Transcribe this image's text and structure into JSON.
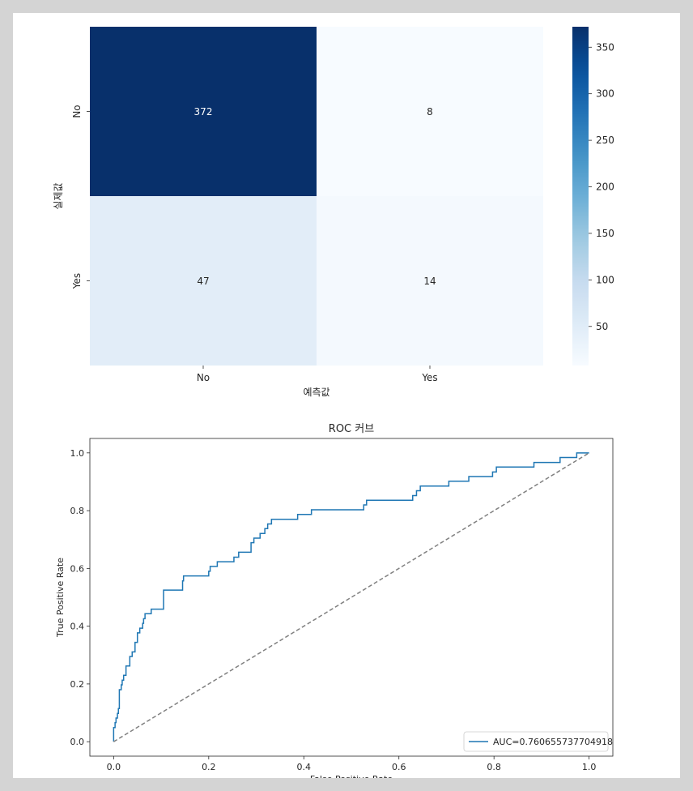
{
  "chart_data": [
    {
      "type": "heatmap",
      "title": "",
      "xlabel": "예측값",
      "ylabel": "실제값",
      "x_categories": [
        "No",
        "Yes"
      ],
      "y_categories": [
        "No",
        "Yes"
      ],
      "values": [
        [
          372,
          8
        ],
        [
          47,
          14
        ]
      ],
      "annotations": [
        [
          "372",
          "8"
        ],
        [
          "47",
          "14"
        ]
      ],
      "colormap": "Blues",
      "colorbar": {
        "range": [
          8,
          372
        ],
        "ticks": [
          50,
          100,
          150,
          200,
          250,
          300,
          350
        ],
        "tick_labels": [
          "50",
          "100",
          "150",
          "200",
          "250",
          "300",
          "350"
        ]
      }
    },
    {
      "type": "line",
      "title": "ROC 커브",
      "xlabel": "False Positive Rate",
      "ylabel": "True Positive Rate",
      "xlim": [
        -0.05,
        1.05
      ],
      "ylim": [
        -0.05,
        1.05
      ],
      "xticks": [
        0.0,
        0.2,
        0.4,
        0.6,
        0.8,
        1.0
      ],
      "xtick_labels": [
        "0.0",
        "0.2",
        "0.4",
        "0.6",
        "0.8",
        "1.0"
      ],
      "yticks": [
        0.0,
        0.2,
        0.4,
        0.6,
        0.8,
        1.0
      ],
      "ytick_labels": [
        "0.0",
        "0.2",
        "0.4",
        "0.6",
        "0.8",
        "1.0"
      ],
      "grid": false,
      "legend_position": "lower-right",
      "series": [
        {
          "name": "AUC=0.760655737704918",
          "color": "#1f77b4",
          "style": "solid",
          "step": true,
          "x": [
            0.0,
            0.0,
            0.003,
            0.005,
            0.008,
            0.01,
            0.012,
            0.016,
            0.018,
            0.021,
            0.026,
            0.034,
            0.039,
            0.045,
            0.05,
            0.055,
            0.061,
            0.063,
            0.066,
            0.079,
            0.084,
            0.105,
            0.108,
            0.145,
            0.147,
            0.153,
            0.2,
            0.203,
            0.213,
            0.218,
            0.232,
            0.234,
            0.253,
            0.263,
            0.289,
            0.295,
            0.308,
            0.313,
            0.318,
            0.324,
            0.332,
            0.337,
            0.387,
            0.395,
            0.416,
            0.421,
            0.526,
            0.532,
            0.629,
            0.637,
            0.645,
            0.658,
            0.705,
            0.747,
            0.747,
            0.789,
            0.797,
            0.8,
            0.805,
            0.813,
            0.816,
            0.884,
            0.887,
            0.939,
            0.966,
            0.974,
            0.987,
            0.99,
            1.0
          ],
          "y": [
            0.0,
            0.049,
            0.066,
            0.082,
            0.098,
            0.115,
            0.18,
            0.197,
            0.213,
            0.23,
            0.262,
            0.295,
            0.311,
            0.344,
            0.377,
            0.393,
            0.41,
            0.426,
            0.443,
            0.459,
            0.459,
            0.525,
            0.525,
            0.557,
            0.574,
            0.574,
            0.59,
            0.607,
            0.607,
            0.623,
            0.623,
            0.623,
            0.639,
            0.656,
            0.689,
            0.705,
            0.721,
            0.721,
            0.738,
            0.754,
            0.77,
            0.77,
            0.787,
            0.787,
            0.803,
            0.803,
            0.82,
            0.836,
            0.852,
            0.869,
            0.885,
            0.885,
            0.902,
            0.902,
            0.918,
            0.918,
            0.934,
            0.934,
            0.951,
            0.951,
            0.951,
            0.967,
            0.967,
            0.984,
            0.984,
            1.0,
            1.0,
            1.0,
            1.0
          ]
        },
        {
          "name": "diagonal",
          "color": "#808080",
          "style": "dashed",
          "x": [
            0,
            1
          ],
          "y": [
            0,
            1
          ]
        }
      ]
    }
  ]
}
